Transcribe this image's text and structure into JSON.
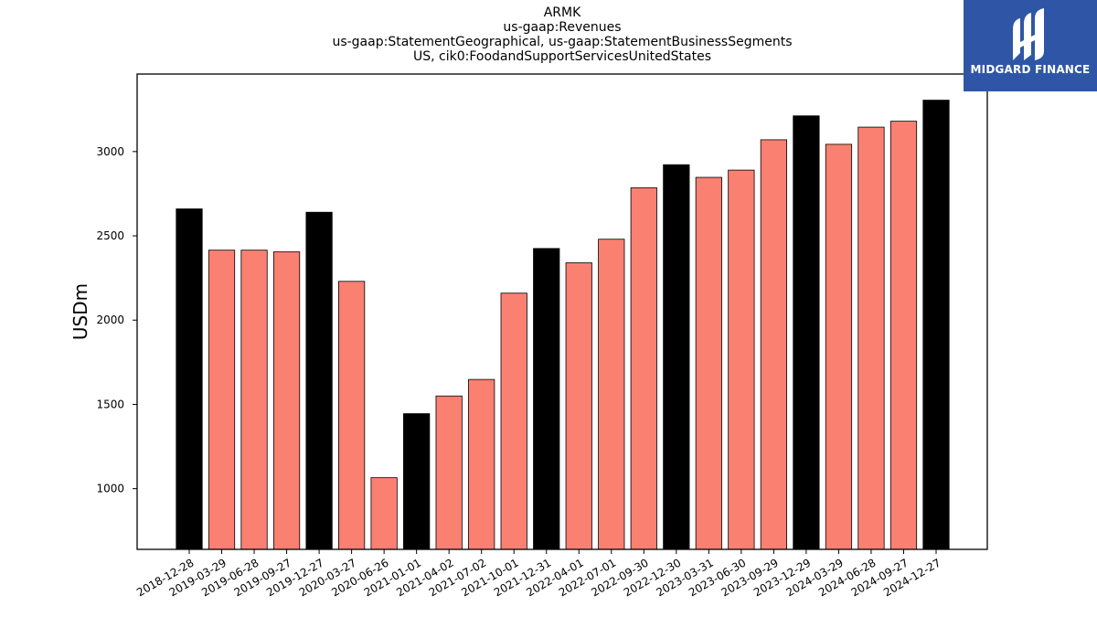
{
  "chart_data": {
    "type": "bar",
    "title_lines": [
      "ARMK",
      "us-gaap:Revenues",
      "us-gaap:StatementGeographical, us-gaap:StatementBusinessSegments",
      "US, cik0:FoodandSupportServicesUnitedStates"
    ],
    "xlabel": "",
    "ylabel": "USDm",
    "ylim": [
      640,
      3460
    ],
    "yticks": [
      1000,
      1500,
      2000,
      2500,
      3000
    ],
    "grid": false,
    "colors": {
      "annual": "#000000",
      "quarterly": "#fa8072",
      "edge": "#000000"
    },
    "categories": [
      "2018-12-28",
      "2019-03-29",
      "2019-06-28",
      "2019-09-27",
      "2019-12-27",
      "2020-03-27",
      "2020-06-26",
      "2021-01-01",
      "2021-04-02",
      "2021-07-02",
      "2021-10-01",
      "2021-12-31",
      "2022-04-01",
      "2022-07-01",
      "2022-09-30",
      "2022-12-30",
      "2023-03-31",
      "2023-06-30",
      "2023-09-29",
      "2023-12-29",
      "2024-03-29",
      "2024-06-28",
      "2024-09-27",
      "2024-12-27"
    ],
    "values": [
      2660,
      2415,
      2415,
      2405,
      2640,
      2230,
      1065,
      1445,
      1550,
      1648,
      2160,
      2425,
      2340,
      2480,
      2785,
      2922,
      2847,
      2890,
      3070,
      3212,
      3043,
      3145,
      3180,
      3305
    ],
    "highlight": [
      true,
      false,
      false,
      false,
      true,
      false,
      false,
      true,
      false,
      false,
      false,
      true,
      false,
      false,
      false,
      true,
      false,
      false,
      false,
      true,
      false,
      false,
      false,
      true
    ]
  },
  "logo": {
    "text": "MIDGARD FINANCE",
    "color": "#2f56a6",
    "icon": "midgard-logo-icon"
  }
}
